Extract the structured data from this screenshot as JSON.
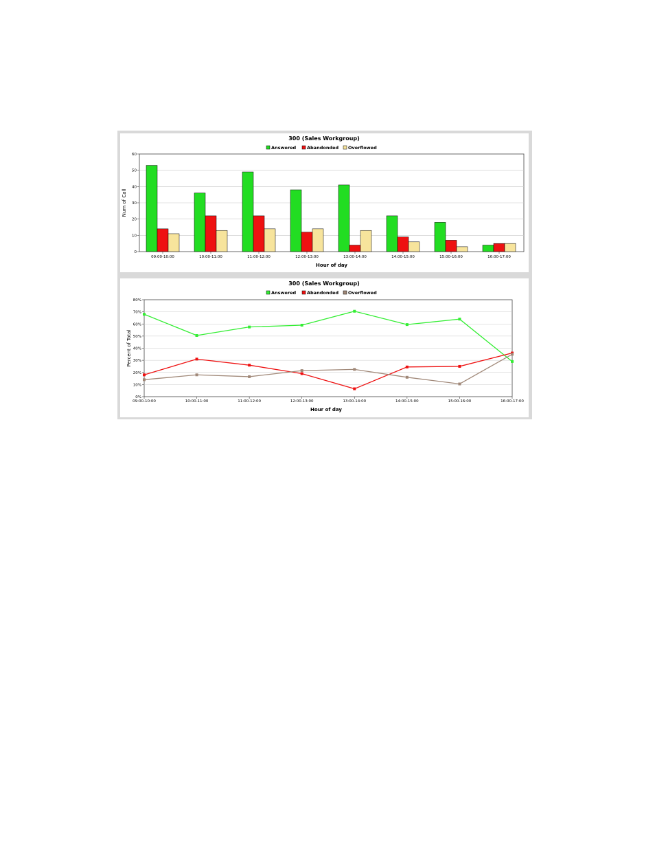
{
  "chart_data": [
    {
      "type": "bar",
      "title": "300 (Sales Workgroup)",
      "xlabel": "Hour of day",
      "ylabel": "Num of Call",
      "ylim": [
        0,
        60
      ],
      "yticks": [
        0,
        10,
        20,
        30,
        40,
        50,
        60
      ],
      "ytick_labels": [
        "0",
        "10",
        "20",
        "30",
        "40",
        "50",
        "60"
      ],
      "grid": true,
      "legend_position": "top-center",
      "categories": [
        "09:00-10:00",
        "10:00-11:00",
        "11:00-12:00",
        "12:00-13:00",
        "13:00-14:00",
        "14:00-15:00",
        "15:00-16:00",
        "16:00-17:00"
      ],
      "series": [
        {
          "name": "Answered",
          "color": "#22dd22",
          "values": [
            53,
            36,
            49,
            38,
            41,
            22,
            18,
            4
          ]
        },
        {
          "name": "Abandonded",
          "color": "#ee1111",
          "values": [
            14,
            22,
            22,
            12,
            4,
            9,
            7,
            5
          ]
        },
        {
          "name": "Overflowed",
          "color": "#f7e49c",
          "values": [
            11,
            13,
            14,
            14,
            13,
            6,
            3,
            5
          ]
        }
      ]
    },
    {
      "type": "line",
      "title": "300 (Sales Workgroup)",
      "xlabel": "Hour of day",
      "ylabel": "Percent of Total",
      "ylim": [
        0,
        80
      ],
      "yticks": [
        0,
        10,
        20,
        30,
        40,
        50,
        60,
        70,
        80
      ],
      "ytick_labels": [
        "0%",
        "10%",
        "20%",
        "30%",
        "40%",
        "50%",
        "60%",
        "70%",
        "80%"
      ],
      "grid": true,
      "legend_position": "top-center",
      "categories": [
        "09:00-10:00",
        "10:00-11:00",
        "11:00-12:00",
        "12:00-13:00",
        "13:00-14:00",
        "14:00-15:00",
        "15:00-16:00",
        "16:00-17:00"
      ],
      "series": [
        {
          "name": "Answered",
          "color": "#33ee33",
          "values": [
            68,
            50.5,
            57.5,
            59,
            70.5,
            59.5,
            64,
            29
          ]
        },
        {
          "name": "Abandonded",
          "color": "#ee1111",
          "values": [
            18,
            31,
            26,
            19,
            6.5,
            24.5,
            25,
            36
          ]
        },
        {
          "name": "Overflowed",
          "color": "#a08878",
          "values": [
            14,
            18,
            16.5,
            21.5,
            22.5,
            16,
            10.5,
            35
          ]
        }
      ]
    }
  ]
}
